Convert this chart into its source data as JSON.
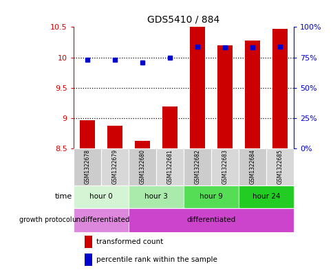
{
  "title": "GDS5410 / 884",
  "samples": [
    "GSM1322678",
    "GSM1322679",
    "GSM1322680",
    "GSM1322681",
    "GSM1322682",
    "GSM1322683",
    "GSM1322684",
    "GSM1322685"
  ],
  "bar_values": [
    8.97,
    8.87,
    8.63,
    9.19,
    10.5,
    10.2,
    10.28,
    10.47
  ],
  "bar_base": 8.5,
  "dot_percentile": [
    73,
    73,
    71,
    75,
    84,
    83,
    83,
    84
  ],
  "ylim_left": [
    8.5,
    10.5
  ],
  "ylim_right": [
    0,
    100
  ],
  "yticks_left": [
    8.5,
    9.0,
    9.5,
    10.0,
    10.5
  ],
  "ytick_labels_left": [
    "8.5",
    "9",
    "9.5",
    "10",
    "10.5"
  ],
  "yticks_right": [
    0,
    25,
    50,
    75,
    100
  ],
  "ytick_labels_right": [
    "0%",
    "25%",
    "50%",
    "75%",
    "100%"
  ],
  "bar_color": "#cc0000",
  "dot_color": "#0000cc",
  "left_tick_color": "#cc0000",
  "right_tick_color": "#0000cc",
  "dotted_line_values": [
    9.0,
    9.5,
    10.0
  ],
  "time_groups": [
    {
      "label": "hour 0",
      "start": 0,
      "end": 2,
      "color": "#d4f5d4"
    },
    {
      "label": "hour 3",
      "start": 2,
      "end": 4,
      "color": "#aaeaaa"
    },
    {
      "label": "hour 9",
      "start": 4,
      "end": 6,
      "color": "#55dd55"
    },
    {
      "label": "hour 24",
      "start": 6,
      "end": 8,
      "color": "#22cc22"
    }
  ],
  "growth_groups": [
    {
      "label": "undifferentiated",
      "start": 0,
      "end": 2,
      "color": "#dd88dd"
    },
    {
      "label": "differentiated",
      "start": 2,
      "end": 8,
      "color": "#cc44cc"
    }
  ],
  "legend_bar_label": "transformed count",
  "legend_dot_label": "percentile rank within the sample",
  "sample_box_color_a": "#cccccc",
  "sample_box_color_b": "#d8d8d8"
}
